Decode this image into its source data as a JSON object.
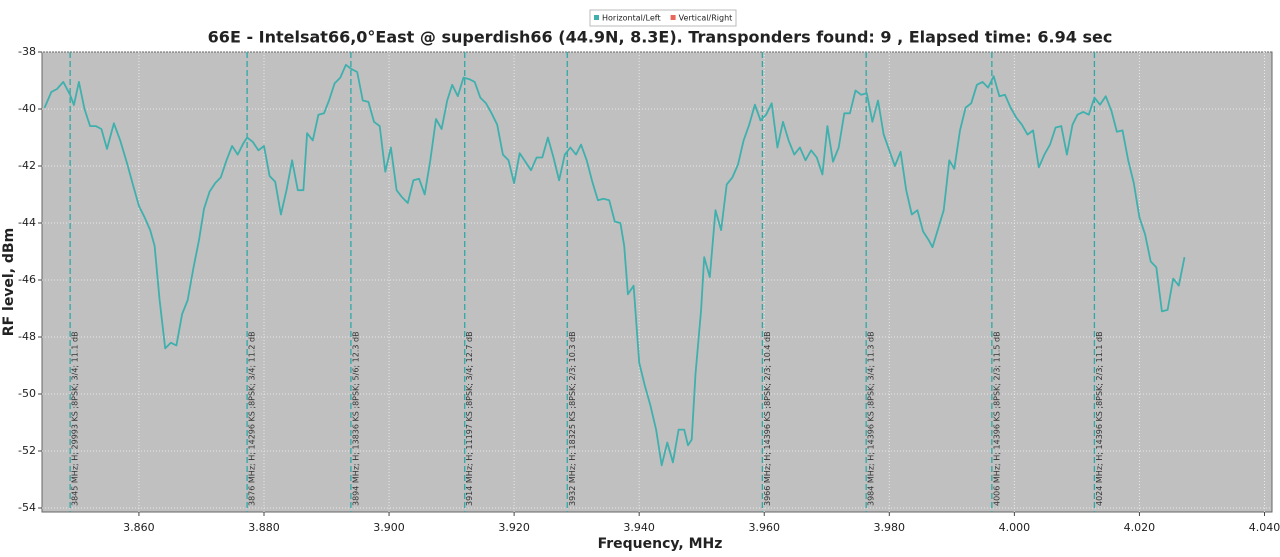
{
  "chart_data": {
    "type": "line",
    "title": "66E - Intelsat66,0°East @ superdish66 (44.9N, 8.3E). Transponders found: 9 , Elapsed time: 6.94 sec",
    "x_label": "Frequency, MHz",
    "y_label": "RF level, dBm",
    "xlim": [
      3.8445,
      4.0412
    ],
    "ylim": [
      -54,
      -38
    ],
    "xticks": [
      {
        "value": 3.86,
        "label": "3.860"
      },
      {
        "value": 3.88,
        "label": "3.880"
      },
      {
        "value": 3.9,
        "label": "3.900"
      },
      {
        "value": 3.92,
        "label": "3.920"
      },
      {
        "value": 3.94,
        "label": "3.940"
      },
      {
        "value": 3.96,
        "label": "3.960"
      },
      {
        "value": 3.98,
        "label": "3.980"
      },
      {
        "value": 4.0,
        "label": "4.000"
      },
      {
        "value": 4.02,
        "label": "4.020"
      },
      {
        "value": 4.04,
        "label": "4.040"
      }
    ],
    "yticks": [
      -54,
      -52,
      -50,
      -48,
      -46,
      -44,
      -42,
      -40,
      -38
    ],
    "grid": true,
    "legend": "top",
    "series": [
      {
        "name": "Horizontal/Left",
        "color": "#3fb0ad",
        "x": [
          3.8449,
          3.846,
          3.8469,
          3.8479,
          3.849,
          3.8496,
          3.8504,
          3.8513,
          3.8522,
          3.8531,
          3.854,
          3.8549,
          3.856,
          3.857,
          3.8581,
          3.8591,
          3.86,
          3.8609,
          3.8618,
          3.8625,
          3.8633,
          3.8642,
          3.8651,
          3.866,
          3.8669,
          3.8678,
          3.8687,
          3.8696,
          3.8704,
          3.8713,
          3.8722,
          3.8731,
          3.874,
          3.8749,
          3.8758,
          3.8767,
          3.8773,
          3.8782,
          3.8791,
          3.88,
          3.8809,
          3.8818,
          3.8827,
          3.8836,
          3.8845,
          3.8854,
          3.8863,
          3.8869,
          3.8878,
          3.8887,
          3.8896,
          3.8904,
          3.8913,
          3.8922,
          3.8931,
          3.894,
          3.8949,
          3.8958,
          3.8967,
          3.8976,
          3.8985,
          3.8994,
          3.9003,
          3.9012,
          3.9021,
          3.903,
          3.9039,
          3.9048,
          3.9057,
          3.9066,
          3.9075,
          3.9084,
          3.9093,
          3.9101,
          3.911,
          3.9119,
          3.9128,
          3.9137,
          3.9146,
          3.9155,
          3.9164,
          3.9173,
          3.9182,
          3.9191,
          3.92,
          3.9209,
          3.9218,
          3.9227,
          3.9236,
          3.9245,
          3.9254,
          3.9263,
          3.9272,
          3.9281,
          3.929,
          3.9299,
          3.9307,
          3.9316,
          3.9325,
          3.9334,
          3.9343,
          3.9352,
          3.9361,
          3.937,
          3.9376,
          3.9382,
          3.9391,
          3.94,
          3.9409,
          3.9418,
          3.9427,
          3.9436,
          3.9445,
          3.9454,
          3.9463,
          3.9472,
          3.9478,
          3.9484,
          3.949,
          3.9499,
          3.9504,
          3.9513,
          3.9522,
          3.9531,
          3.954,
          3.9549,
          3.9558,
          3.9567,
          3.9576,
          3.9585,
          3.9594,
          3.9603,
          3.9612,
          3.9621,
          3.963,
          3.9639,
          3.9648,
          3.9657,
          3.9666,
          3.9675,
          3.9684,
          3.9693,
          3.9701,
          3.971,
          3.9719,
          3.9728,
          3.9737,
          3.9746,
          3.9755,
          3.9764,
          3.9773,
          3.9782,
          3.9791,
          3.98,
          3.9809,
          3.9818,
          3.9827,
          3.9836,
          3.9845,
          3.9854,
          3.9863,
          3.9869,
          3.9878,
          3.9887,
          3.9896,
          3.9904,
          3.9913,
          3.9922,
          3.9931,
          3.994,
          3.9949,
          3.9958,
          3.9967,
          3.9976,
          3.9985,
          3.9994,
          4.0003,
          4.0012,
          4.0021,
          4.003,
          4.0039,
          4.0048,
          4.0057,
          4.0066,
          4.0075,
          4.0084,
          4.0093,
          4.0101,
          4.011,
          4.0119,
          4.0128,
          4.0137,
          4.0146,
          4.0155,
          4.0164,
          4.0173,
          4.0182,
          4.0191,
          4.02,
          4.0209,
          4.0218,
          4.0227,
          4.0236,
          4.0245,
          4.0254,
          4.0263,
          4.0272
        ],
        "values": [
          -39.96,
          -39.4,
          -39.3,
          -39.05,
          -39.5,
          -39.86,
          -39.05,
          -40.0,
          -40.6,
          -40.6,
          -40.7,
          -41.4,
          -40.5,
          -41.1,
          -41.9,
          -42.7,
          -43.4,
          -43.8,
          -44.25,
          -44.8,
          -46.7,
          -48.4,
          -48.2,
          -48.3,
          -47.2,
          -46.7,
          -45.6,
          -44.6,
          -43.5,
          -42.9,
          -42.6,
          -42.4,
          -41.8,
          -41.3,
          -41.6,
          -41.2,
          -41.0,
          -41.15,
          -41.45,
          -41.3,
          -42.35,
          -42.55,
          -43.7,
          -42.85,
          -41.8,
          -42.85,
          -42.85,
          -40.85,
          -41.1,
          -40.2,
          -40.15,
          -39.7,
          -39.1,
          -38.9,
          -38.45,
          -38.6,
          -38.7,
          -39.7,
          -39.75,
          -40.45,
          -40.6,
          -42.2,
          -41.35,
          -42.85,
          -43.1,
          -43.3,
          -42.5,
          -42.45,
          -43.0,
          -41.8,
          -40.35,
          -40.7,
          -39.7,
          -39.15,
          -39.55,
          -38.9,
          -38.95,
          -39.05,
          -39.6,
          -39.8,
          -40.15,
          -40.55,
          -41.6,
          -41.8,
          -42.6,
          -41.55,
          -41.85,
          -42.15,
          -41.7,
          -41.7,
          -41.0,
          -41.7,
          -42.5,
          -41.6,
          -41.35,
          -41.6,
          -41.25,
          -41.8,
          -42.55,
          -43.2,
          -43.15,
          -43.2,
          -43.95,
          -44.0,
          -44.8,
          -46.5,
          -46.2,
          -48.9,
          -49.7,
          -50.4,
          -51.25,
          -52.5,
          -51.7,
          -52.4,
          -51.25,
          -51.25,
          -51.8,
          -51.6,
          -49.3,
          -47.05,
          -45.2,
          -45.9,
          -43.55,
          -44.25,
          -42.65,
          -42.4,
          -41.95,
          -41.1,
          -40.55,
          -39.85,
          -40.4,
          -40.2,
          -39.8,
          -41.35,
          -40.45,
          -41.1,
          -41.6,
          -41.35,
          -41.8,
          -41.45,
          -41.7,
          -42.3,
          -40.6,
          -41.85,
          -41.35,
          -40.15,
          -40.15,
          -39.35,
          -39.5,
          -39.45,
          -40.45,
          -39.7,
          -40.9,
          -41.45,
          -42.0,
          -41.5,
          -42.85,
          -43.7,
          -43.55,
          -44.3,
          -44.6,
          -44.85,
          -44.2,
          -43.55,
          -41.8,
          -42.1,
          -40.75,
          -39.95,
          -39.8,
          -39.15,
          -39.05,
          -39.25,
          -38.85,
          -39.55,
          -39.5,
          -39.95,
          -40.3,
          -40.55,
          -40.9,
          -40.75,
          -42.05,
          -41.6,
          -41.25,
          -40.65,
          -40.6,
          -41.6,
          -40.55,
          -40.2,
          -40.1,
          -40.2,
          -39.6,
          -39.85,
          -39.55,
          -40.05,
          -40.8,
          -40.75,
          -41.8,
          -42.6,
          -43.8,
          -44.4,
          -45.35,
          -45.55,
          -47.1,
          -47.05,
          -45.95,
          -46.2,
          -45.2
        ]
      },
      {
        "name": "Vertical/Right",
        "color": "#e8675a",
        "x": [],
        "values": []
      }
    ],
    "markers": [
      {
        "x": 3.849,
        "label": "3845 MHz; H; 29993 KS ;8PSK; 3/4; 11.1 dB"
      },
      {
        "x": 3.8773,
        "label": "3876 MHz; H; 14296 KS ;8PSK; 3/4; 11.2 dB"
      },
      {
        "x": 3.8939,
        "label": "3894 MHz; H; 13836 KS ;8PSK; 5/6; 12.3 dB"
      },
      {
        "x": 3.9121,
        "label": "3914 MHz; H; 11197 KS ;8PSK; 3/4; 12.7 dB"
      },
      {
        "x": 3.9285,
        "label": "3932 MHz; H; 18325 KS ;8PSK; 2/3; 10.3 dB"
      },
      {
        "x": 3.9597,
        "label": "3966 MHz; H; 14396 KS ;8PSK; 2/3; 10.4 dB"
      },
      {
        "x": 3.9763,
        "label": "3984 MHz; H; 14396 KS ;8PSK; 3/4; 11.3 dB"
      },
      {
        "x": 3.9964,
        "label": "4006 MHz; H; 14396 KS ;8PSK; 2/3; 11.5 dB"
      },
      {
        "x": 4.0128,
        "label": "4024 MHz; H; 14396 KS ;8PSK; 2/3; 11.1 dB"
      }
    ],
    "marker_color": "#2fa9a6"
  }
}
